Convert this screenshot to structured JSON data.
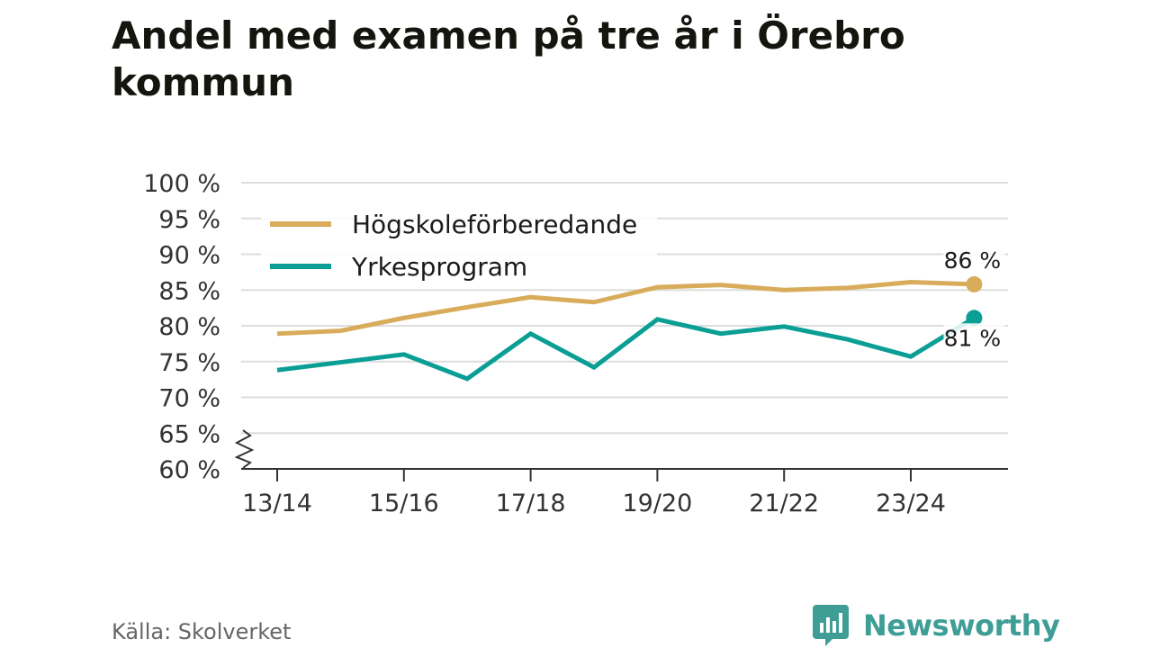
{
  "colors": {
    "gold": "#d8ac5a",
    "teal": "#0a9e94",
    "grid": "#dddddd",
    "axis": "#333333",
    "brand": "#3e9e96"
  },
  "source": "Källa: Skolverket",
  "brand": {
    "name": "Newsworthy",
    "icon": "newsworthy-logo-icon"
  },
  "chart_data": {
    "type": "line",
    "title": "Andel med examen på tre år i Örebro kommun",
    "xlabel": "",
    "ylabel": "",
    "ylim": [
      60,
      100
    ],
    "yticks": [
      60,
      65,
      70,
      75,
      80,
      85,
      90,
      95,
      100
    ],
    "ytick_suffix": " %",
    "x": [
      "13/14",
      "14/15",
      "15/16",
      "16/17",
      "17/18",
      "18/19",
      "19/20",
      "20/21",
      "21/22",
      "22/23",
      "23/24",
      "24/25"
    ],
    "xtick_labels": [
      "13/14",
      "15/16",
      "17/18",
      "19/20",
      "21/22",
      "23/24"
    ],
    "axis_break": true,
    "legend_position": "top-left",
    "series": [
      {
        "name": "Högskoleförberedande",
        "color": "#d8ac5a",
        "values": [
          78.9,
          79.3,
          81.1,
          82.6,
          84.0,
          83.3,
          85.4,
          85.7,
          85.0,
          85.3,
          86.1,
          85.8
        ],
        "end_label": "86 %"
      },
      {
        "name": "Yrkesprogram",
        "color": "#0a9e94",
        "values": [
          73.8,
          74.9,
          76.0,
          72.6,
          78.9,
          74.2,
          80.9,
          78.9,
          79.9,
          78.1,
          75.7,
          81.1
        ],
        "end_label": "81 %"
      }
    ]
  }
}
